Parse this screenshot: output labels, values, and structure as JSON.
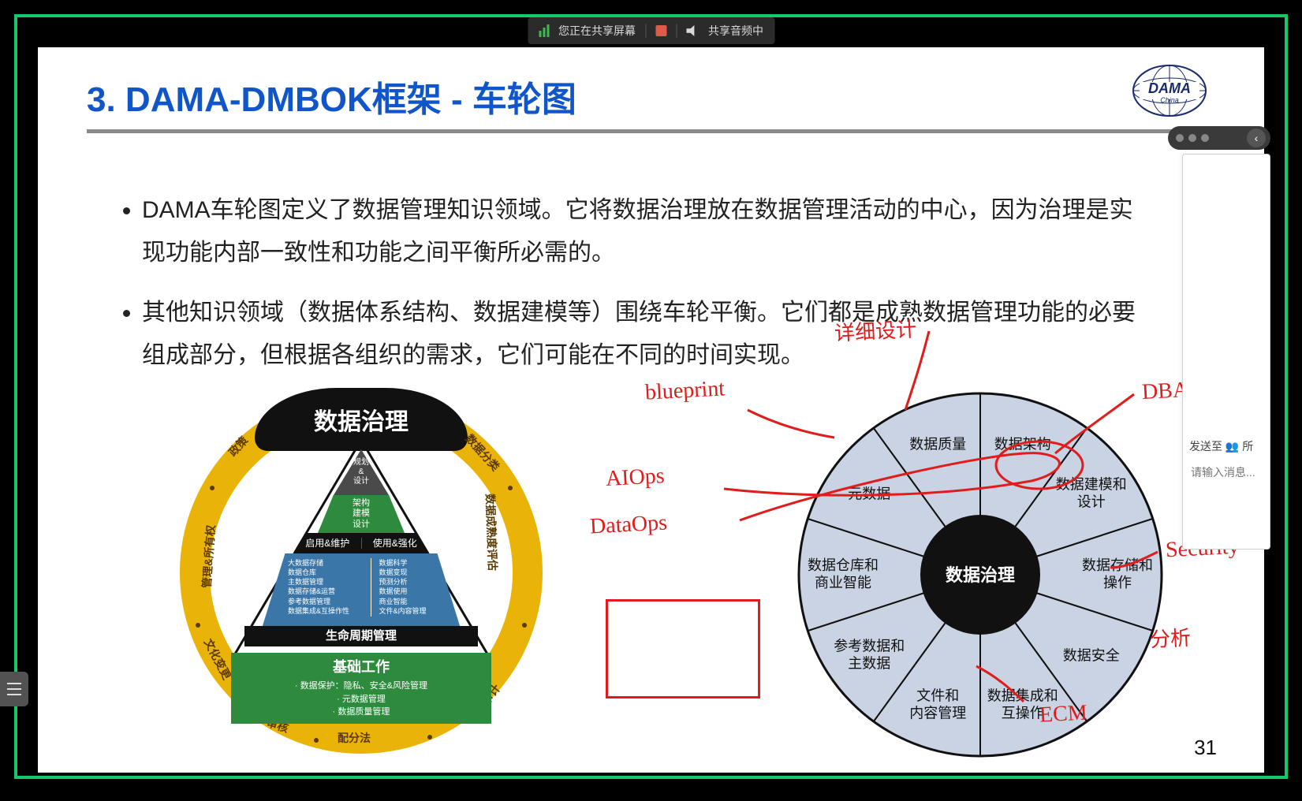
{
  "sharebar": {
    "status": "您正在共享屏幕",
    "audio": "共享音频中"
  },
  "slide": {
    "title": "3. DAMA-DMBOK框架 - 车轮图",
    "title_color": "#1156c8",
    "bullets": [
      "DAMA车轮图定义了数据管理知识领域。它将数据治理放在数据管理活动的中心，因为治理是实现功能内部一致性和功能之间平衡所必需的。",
      "其他知识领域（数据体系结构、数据建模等）围绕车轮平衡。它们都是成熟数据管理功能的必要组成部分，但根据各组织的需求，它们可能在不同的时间实现。"
    ],
    "page_number": "31",
    "logo": {
      "top": "DAMA",
      "bottom": "China"
    }
  },
  "chat": {
    "send_to": "发送至",
    "all": "所",
    "placeholder": "请输入消息..."
  },
  "ring": {
    "arc_top": "数据治理",
    "labels": [
      "政策",
      "数据分类",
      "数据成熟度评估",
      "数据审计",
      "配分法",
      "审核",
      "文化变更",
      "管理&所有权"
    ],
    "ring_color": "#eab308",
    "text_color": "#5b3a00"
  },
  "pyramid": {
    "apex": {
      "label": "规划\n&\n设计",
      "bg": "#4a4a4a"
    },
    "l2": {
      "label": "架构\n建模\n设计",
      "bg": "#2e8b3d"
    },
    "l3": {
      "left": "启用&维护",
      "right": "使用&强化",
      "bg": "#111"
    },
    "l4": {
      "left": [
        "大数据存储",
        "数据仓库",
        "主数据管理",
        "数据存储&运营",
        "参考数据管理",
        "数据集成&互操作性"
      ],
      "right": [
        "数据科学",
        "数据变现",
        "预测分析",
        "数据使用",
        "商业智能",
        "文件&内容管理"
      ],
      "bg": "#3a77a8"
    },
    "lifecycle": {
      "label": "生命周期管理",
      "bg": "#111"
    },
    "foundation": {
      "title": "基础工作",
      "items": [
        "数据保护：隐私、安全&风险管理",
        "元数据管理",
        "数据质量管理"
      ],
      "bg": "#2e8b3d"
    }
  },
  "wheel": {
    "type": "pie",
    "hub": "数据治理",
    "hub_color": "#111111",
    "segment_fill": "#c9d3e3",
    "segment_stroke": "#111111",
    "outer_r": 230,
    "inner_r": 70,
    "segments": [
      "数据架构",
      "数据建模和设计",
      "数据存储和操作",
      "数据安全",
      "数据集成和互操作",
      "文件和内容管理",
      "参考数据和主数据",
      "数据仓库和商业智能",
      "元数据",
      "数据质量"
    ]
  },
  "annotations": {
    "blueprint": "blueprint",
    "detail": "详细设计",
    "dba": "DBA工作",
    "aiops": "AIOps",
    "dataops": "DataOps",
    "security": "Security",
    "ecm": "ECM",
    "fenxi": "分析"
  }
}
